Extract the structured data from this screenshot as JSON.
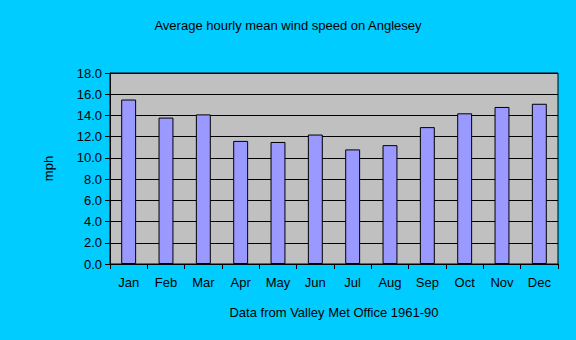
{
  "chart_data": {
    "type": "bar",
    "title": "Average hourly mean wind speed on Anglesey",
    "xlabel": "Data from Valley Met Office 1961-90",
    "ylabel": "mph",
    "categories": [
      "Jan",
      "Feb",
      "Mar",
      "Apr",
      "May",
      "Jun",
      "Jul",
      "Aug",
      "Sep",
      "Oct",
      "Nov",
      "Dec"
    ],
    "values": [
      15.5,
      13.8,
      14.1,
      11.6,
      11.5,
      12.2,
      10.8,
      11.2,
      12.9,
      14.2,
      14.8,
      15.1
    ],
    "color": "#9999ff",
    "ylim": [
      0,
      18
    ],
    "yticks": [
      {
        "value": 0,
        "label": "0.0"
      },
      {
        "value": 2,
        "label": "2.0"
      },
      {
        "value": 4,
        "label": "4.0"
      },
      {
        "value": 6,
        "label": "6.0"
      },
      {
        "value": 8,
        "label": "8.0"
      },
      {
        "value": 10,
        "label": "10.0"
      },
      {
        "value": 12,
        "label": "12.0"
      },
      {
        "value": 14,
        "label": "14.0"
      },
      {
        "value": 16,
        "label": "16.0"
      },
      {
        "value": 18,
        "label": "18.0"
      }
    ],
    "grid": true
  }
}
